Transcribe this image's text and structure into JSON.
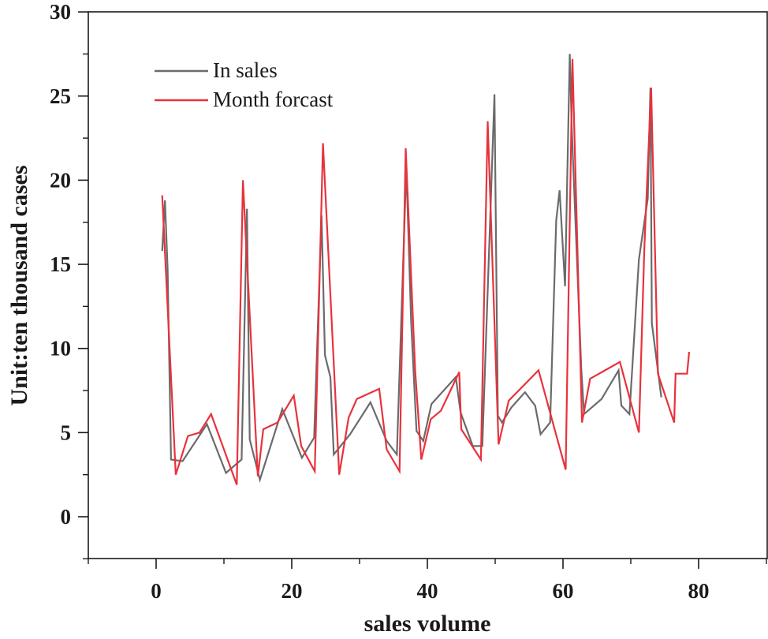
{
  "chart_data": {
    "type": "line",
    "title": "",
    "xlabel": "sales volume",
    "ylabel": "Unit:ten thousand cases",
    "xlim": [
      -10,
      90
    ],
    "ylim": [
      -2.5,
      30
    ],
    "x_ticks": [
      0,
      20,
      40,
      60,
      80
    ],
    "y_ticks": [
      0,
      5,
      10,
      15,
      20,
      25,
      30
    ],
    "grid": false,
    "legend_position": "upper-left",
    "series": [
      {
        "name": "In sales",
        "color": "#6b6b6b",
        "points": [
          [
            0.9,
            15.8
          ],
          [
            1.3,
            18.8
          ],
          [
            1.7,
            14.7
          ],
          [
            2.2,
            3.4
          ],
          [
            3.9,
            3.3
          ],
          [
            7.5,
            5.5
          ],
          [
            10.3,
            2.6
          ],
          [
            12.6,
            3.4
          ],
          [
            13.4,
            18.3
          ],
          [
            13.8,
            4.6
          ],
          [
            15.3,
            2.2
          ],
          [
            18.6,
            6.4
          ],
          [
            21.5,
            3.5
          ],
          [
            23.3,
            4.7
          ],
          [
            24.4,
            17.9
          ],
          [
            24.9,
            9.6
          ],
          [
            25.7,
            8.3
          ],
          [
            26.2,
            3.7
          ],
          [
            28.6,
            4.9
          ],
          [
            31.6,
            6.8
          ],
          [
            34.0,
            4.5
          ],
          [
            35.5,
            3.7
          ],
          [
            36.9,
            20.8
          ],
          [
            37.6,
            11.6
          ],
          [
            38.4,
            5.1
          ],
          [
            39.4,
            4.5
          ],
          [
            40.6,
            6.7
          ],
          [
            44.2,
            8.3
          ],
          [
            44.9,
            6.2
          ],
          [
            46.7,
            4.2
          ],
          [
            48.1,
            4.2
          ],
          [
            49.9,
            25.1
          ],
          [
            50.4,
            6.0
          ],
          [
            51.0,
            5.6
          ],
          [
            52.4,
            6.5
          ],
          [
            54.4,
            7.4
          ],
          [
            55.9,
            6.6
          ],
          [
            56.7,
            4.9
          ],
          [
            58.1,
            5.6
          ],
          [
            59.0,
            17.6
          ],
          [
            59.5,
            19.4
          ],
          [
            60.3,
            13.7
          ],
          [
            61.0,
            27.5
          ],
          [
            61.3,
            23.0
          ],
          [
            62.7,
            8.8
          ],
          [
            63.1,
            6.1
          ],
          [
            65.7,
            7.0
          ],
          [
            68.2,
            8.7
          ],
          [
            68.6,
            6.6
          ],
          [
            69.8,
            6.1
          ],
          [
            71.2,
            15.3
          ],
          [
            72.5,
            18.9
          ],
          [
            72.9,
            25.5
          ],
          [
            73.1,
            11.5
          ],
          [
            74.5,
            7.1
          ]
        ]
      },
      {
        "name": "Month forcast",
        "color": "#e8323c",
        "points": [
          [
            0.9,
            19.1
          ],
          [
            2.9,
            2.5
          ],
          [
            4.7,
            4.8
          ],
          [
            6.4,
            5.0
          ],
          [
            8.1,
            6.1
          ],
          [
            11.9,
            1.9
          ],
          [
            12.8,
            20.0
          ],
          [
            15.0,
            2.4
          ],
          [
            15.8,
            5.2
          ],
          [
            17.9,
            5.6
          ],
          [
            20.3,
            7.2
          ],
          [
            21.4,
            4.2
          ],
          [
            23.4,
            2.7
          ],
          [
            24.6,
            22.2
          ],
          [
            27.0,
            2.5
          ],
          [
            28.4,
            5.9
          ],
          [
            29.6,
            7.0
          ],
          [
            32.9,
            7.6
          ],
          [
            34.0,
            4.0
          ],
          [
            35.9,
            2.7
          ],
          [
            36.8,
            21.9
          ],
          [
            38.2,
            8.7
          ],
          [
            39.1,
            3.4
          ],
          [
            40.5,
            5.8
          ],
          [
            42.0,
            6.3
          ],
          [
            44.7,
            8.6
          ],
          [
            45.0,
            5.2
          ],
          [
            47.9,
            3.4
          ],
          [
            48.9,
            23.5
          ],
          [
            50.5,
            4.3
          ],
          [
            52.0,
            6.9
          ],
          [
            56.4,
            8.7
          ],
          [
            60.4,
            2.8
          ],
          [
            61.4,
            27.2
          ],
          [
            62.8,
            5.6
          ],
          [
            64.0,
            8.2
          ],
          [
            68.4,
            9.2
          ],
          [
            71.2,
            5.0
          ],
          [
            72.0,
            16.0
          ],
          [
            73.0,
            25.5
          ],
          [
            74.0,
            8.5
          ],
          [
            76.4,
            5.6
          ],
          [
            76.6,
            8.5
          ],
          [
            78.3,
            8.5
          ],
          [
            78.6,
            9.8
          ]
        ]
      }
    ]
  },
  "legend": {
    "items": [
      {
        "label": "In sales",
        "color": "#6b6b6b"
      },
      {
        "label": "Month forcast",
        "color": "#e8323c"
      }
    ]
  },
  "axes": {
    "x_title": "sales volume",
    "y_title": "Unit:ten thousand cases",
    "x_tick_labels": [
      "0",
      "20",
      "40",
      "60",
      "80"
    ],
    "y_tick_labels": [
      "0",
      "5",
      "10",
      "15",
      "20",
      "25",
      "30"
    ]
  }
}
